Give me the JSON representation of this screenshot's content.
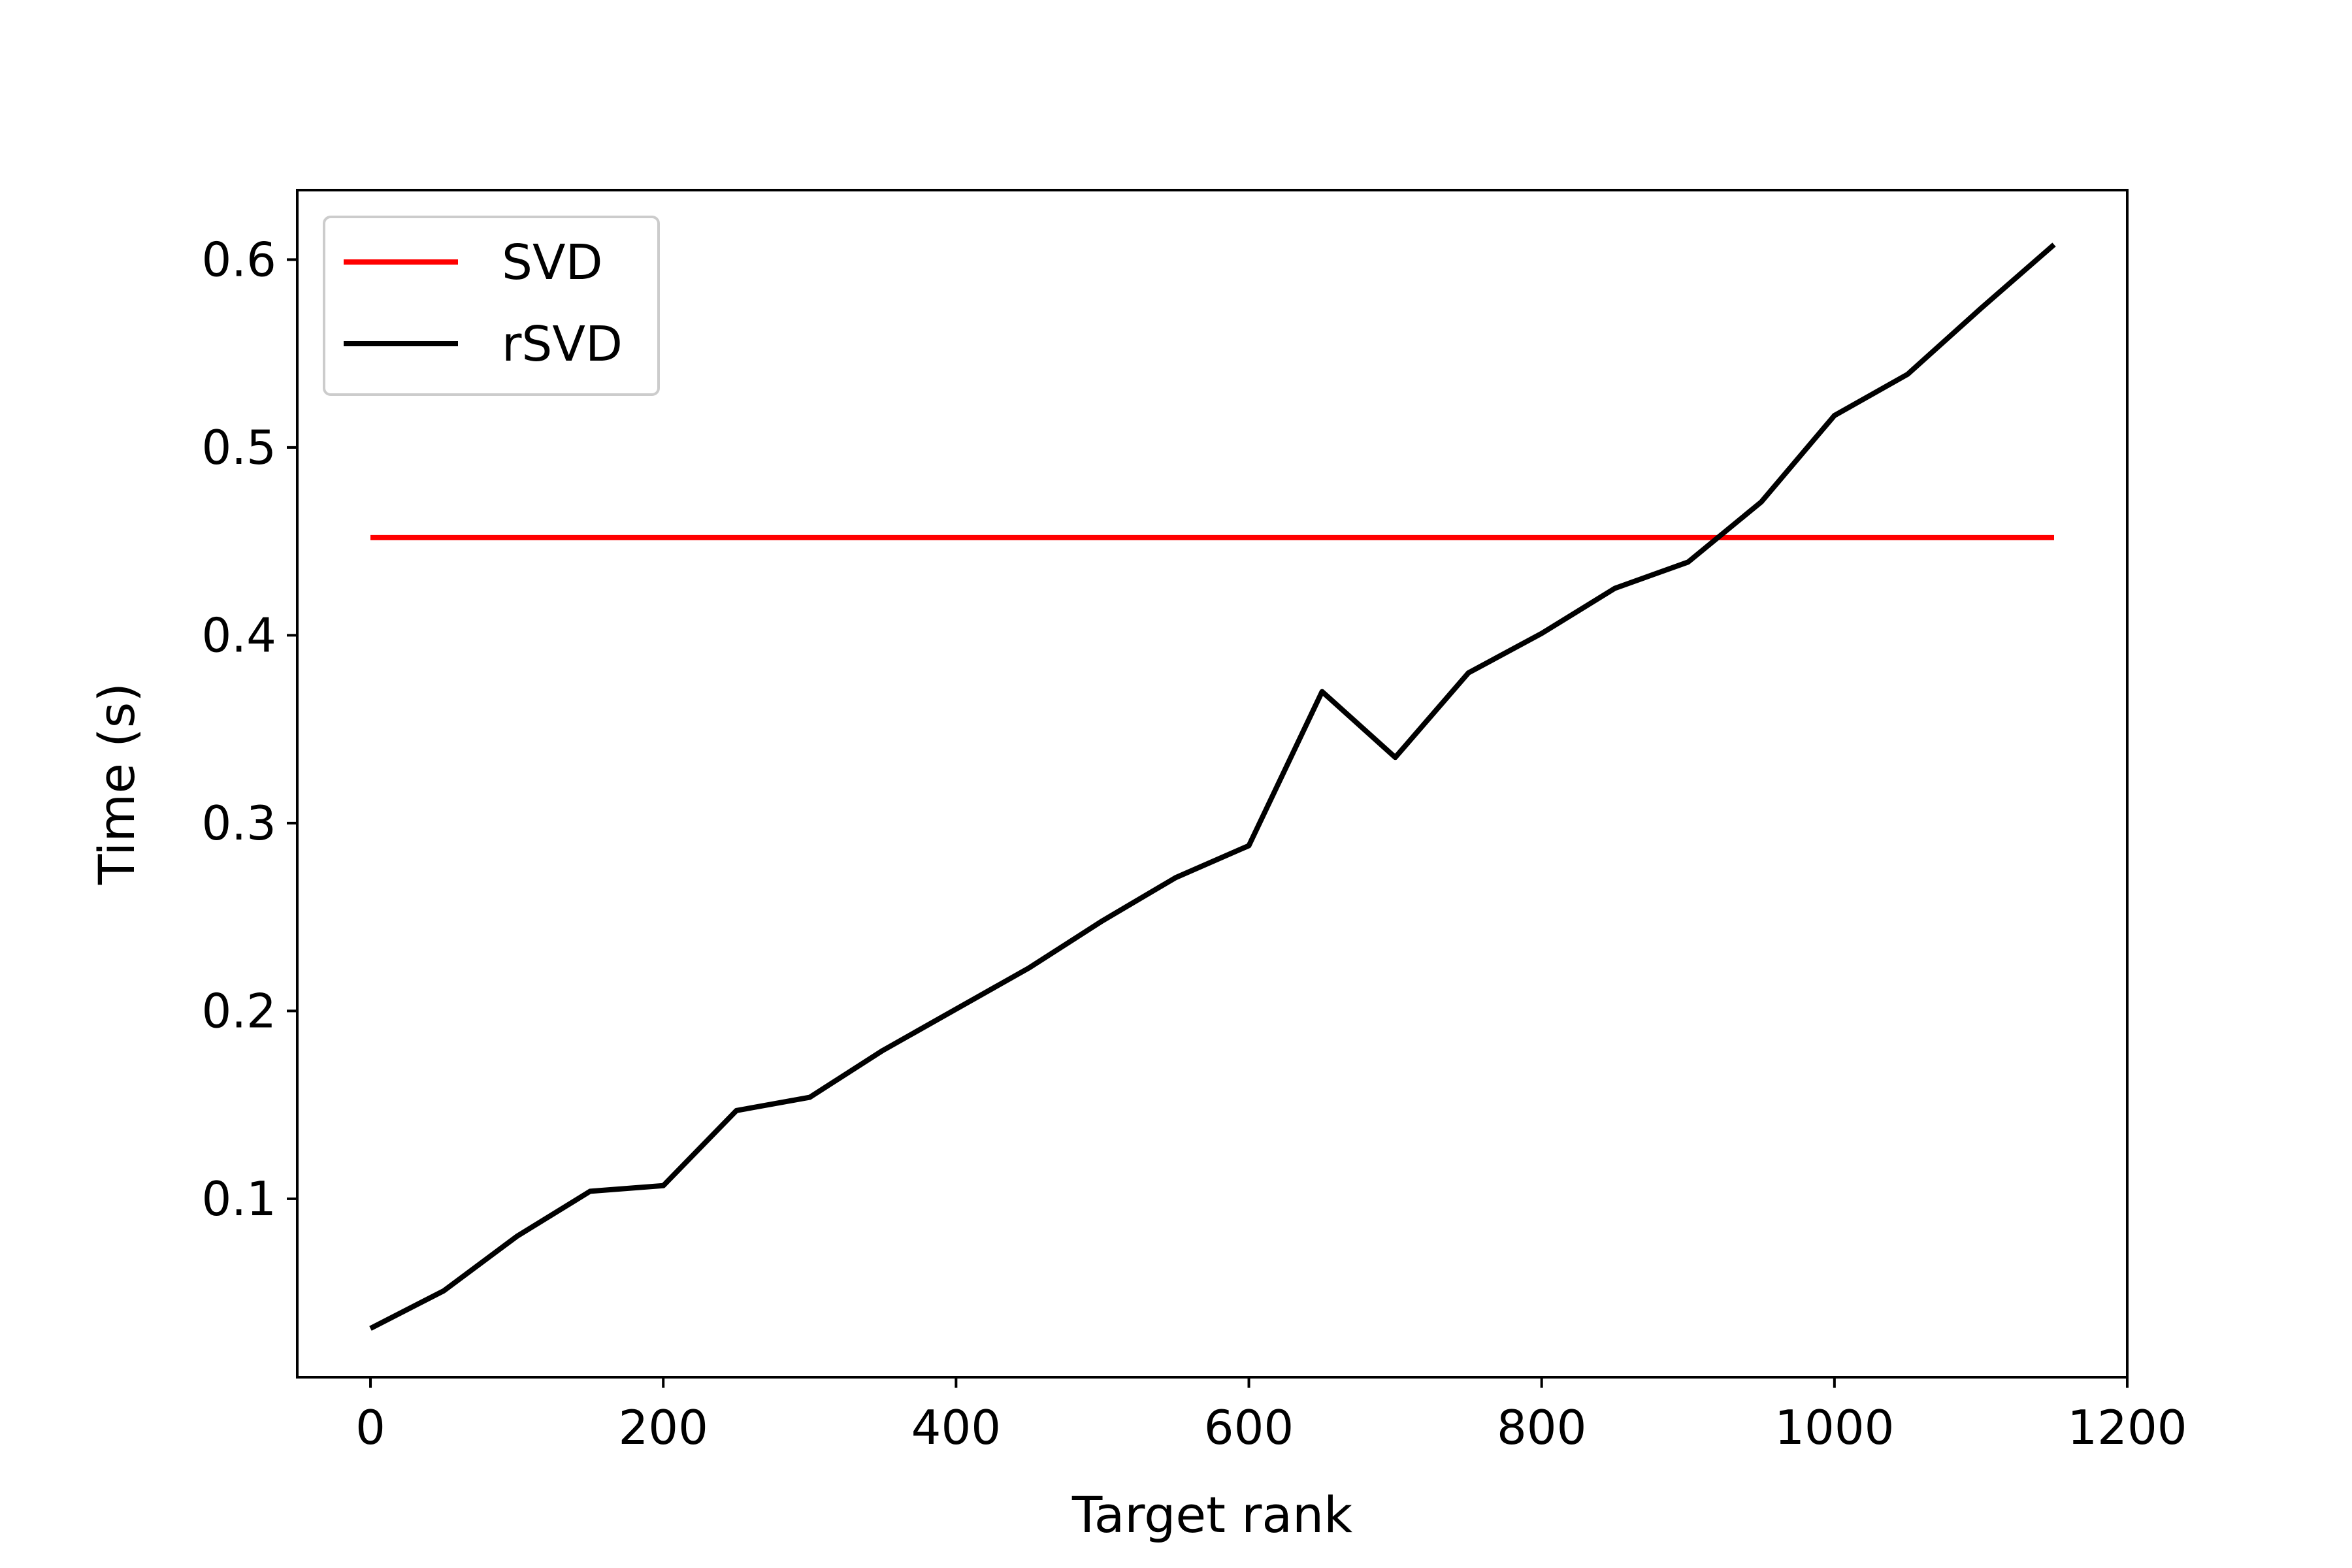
{
  "chart_data": {
    "type": "line",
    "title": "",
    "xlabel": "Target rank",
    "ylabel": "Time (s)",
    "xlim": [
      -50,
      1200
    ],
    "ylim": [
      0.005,
      0.637
    ],
    "xticks": [
      0,
      200,
      400,
      600,
      800,
      1000,
      1200
    ],
    "yticks": [
      0.1,
      0.2,
      0.3,
      0.4,
      0.5,
      0.6
    ],
    "xtick_labels": [
      "0",
      "200",
      "400",
      "600",
      "800",
      "1000",
      "1200"
    ],
    "ytick_labels": [
      "0.1",
      "0.2",
      "0.3",
      "0.4",
      "0.5",
      "0.6"
    ],
    "grid": false,
    "legend_position": "top-left",
    "series": [
      {
        "name": "SVD",
        "color": "#ff0000",
        "x": [
          0,
          1150
        ],
        "y": [
          0.452,
          0.452
        ]
      },
      {
        "name": "rSVD",
        "color": "#000000",
        "x": [
          0,
          50,
          100,
          150,
          200,
          250,
          300,
          350,
          400,
          450,
          500,
          550,
          600,
          650,
          700,
          750,
          800,
          850,
          900,
          950,
          1000,
          1050,
          1100,
          1150
        ],
        "y": [
          0.031,
          0.051,
          0.08,
          0.104,
          0.107,
          0.147,
          0.154,
          0.179,
          0.201,
          0.223,
          0.248,
          0.271,
          0.288,
          0.37,
          0.335,
          0.38,
          0.401,
          0.425,
          0.439,
          0.471,
          0.517,
          0.539,
          0.574,
          0.608
        ]
      }
    ]
  }
}
